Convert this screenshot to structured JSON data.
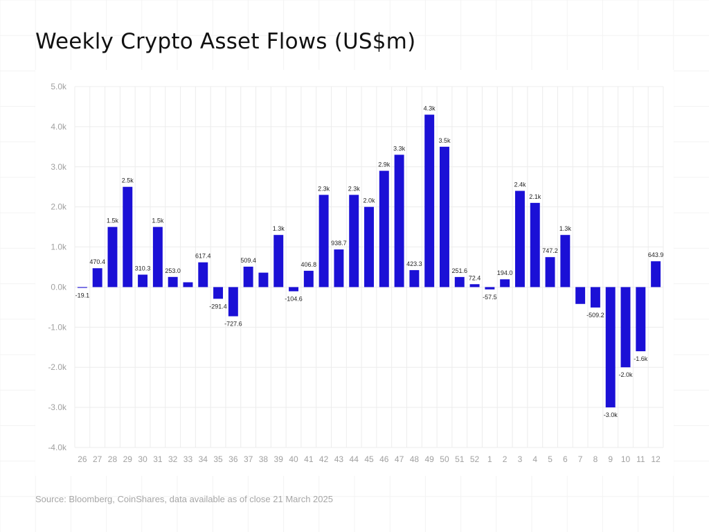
{
  "title": "Weekly Crypto Asset Flows (US$m)",
  "source": "Source: Bloomberg, CoinShares, data available as of close 21 March 2025",
  "colors": {
    "bar": "#1b10d6",
    "grid": "#ececec",
    "background_grid": "#f3f3f3",
    "axis_text": "#a0a0a0",
    "label_text": "#222222"
  },
  "chart_data": {
    "type": "bar",
    "title": "Weekly Crypto Asset Flows (US$m)",
    "xlabel": "",
    "ylabel": "",
    "ylim": [
      -4000,
      5000
    ],
    "grid": true,
    "y_ticks": [
      5000,
      4000,
      3000,
      2000,
      1000,
      0,
      -1000,
      -2000,
      -3000,
      -4000
    ],
    "y_tick_labels": [
      "5.0k",
      "4.0k",
      "3.0k",
      "2.0k",
      "1.0k",
      "0.0k",
      "-1.0k",
      "-2.0k",
      "-3.0k",
      "-4.0k"
    ],
    "categories": [
      "26",
      "27",
      "28",
      "29",
      "30",
      "31",
      "32",
      "33",
      "34",
      "35",
      "36",
      "37",
      "38",
      "39",
      "40",
      "41",
      "42",
      "43",
      "44",
      "45",
      "46",
      "47",
      "48",
      "49",
      "50",
      "51",
      "52",
      "1",
      "2",
      "3",
      "4",
      "5",
      "6",
      "7",
      "8",
      "9",
      "10",
      "11",
      "12"
    ],
    "values": [
      -19.1,
      470.4,
      1500,
      2500,
      310.3,
      1500,
      253.0,
      120,
      617.4,
      -291.4,
      -727.6,
      509.4,
      360,
      1300,
      -104.6,
      406.8,
      2300,
      938.7,
      2300,
      2000,
      2900,
      3300,
      423.3,
      4300,
      3500,
      251.6,
      72.4,
      -57.5,
      194.0,
      2400,
      2100,
      747.2,
      1300,
      -420,
      -509.2,
      -3000,
      -2000,
      -1600,
      643.9
    ],
    "data_labels": [
      "-19.1",
      "470.4",
      "1.5k",
      "2.5k",
      "310.3",
      "1.5k",
      "253.0",
      "",
      "617.4",
      "-291.4",
      "-727.6",
      "509.4",
      "",
      "1.3k",
      "-104.6",
      "406.8",
      "2.3k",
      "938.7",
      "2.3k",
      "2.0k",
      "2.9k",
      "3.3k",
      "423.3",
      "4.3k",
      "3.5k",
      "251.6",
      "72.4",
      "-57.5",
      "194.0",
      "2.4k",
      "2.1k",
      "747.2",
      "1.3k",
      "",
      "-509.2",
      "-3.0k",
      "-2.0k",
      "-1.6k",
      "643.9"
    ]
  }
}
